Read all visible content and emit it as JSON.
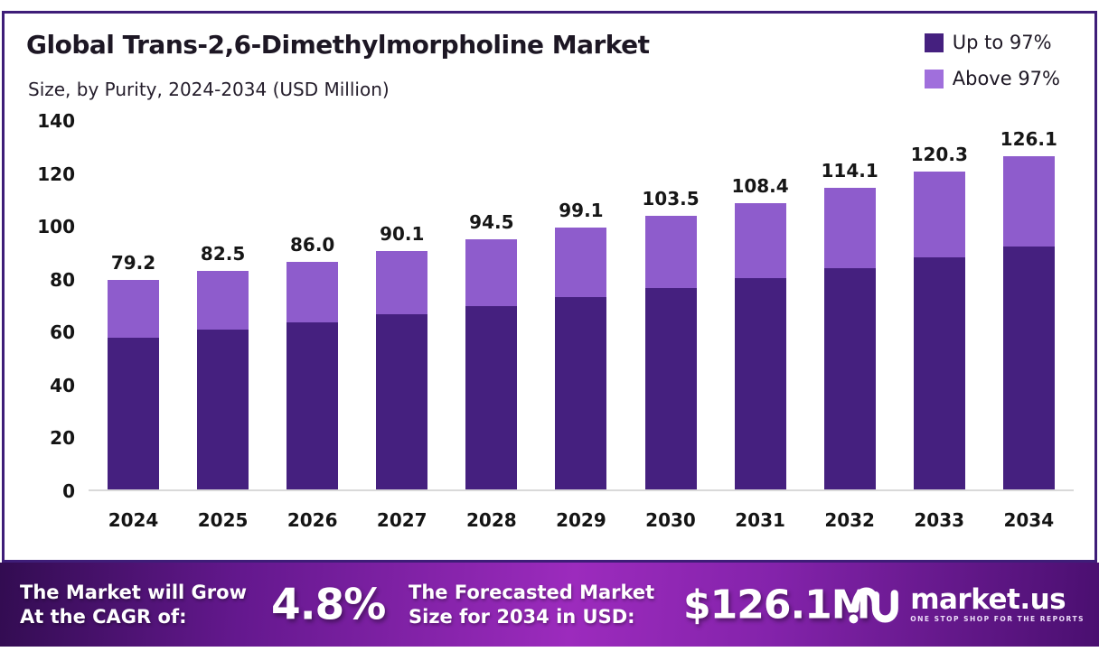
{
  "frame": {
    "border_color": "#3E1D78"
  },
  "header": {
    "title": "Global Trans-2,6-Dimethylmorpholine Market",
    "subtitle": "Size, by Purity, 2024-2034 (USD Million)"
  },
  "legend": [
    {
      "label": "Up to 97%",
      "color": "#45207F"
    },
    {
      "label": "Above 97%",
      "color": "#A06FDC"
    }
  ],
  "chart_data": {
    "type": "bar",
    "stacked": true,
    "title": "Global Trans-2,6-Dimethylmorpholine Market Size, by Purity, 2024-2034 (USD Million)",
    "categories": [
      "2024",
      "2025",
      "2026",
      "2027",
      "2028",
      "2029",
      "2030",
      "2031",
      "2032",
      "2033",
      "2034"
    ],
    "series": [
      {
        "name": "Up to 97%",
        "color": "#45207F",
        "values": [
          57.5,
          60.3,
          63.1,
          66.2,
          69.3,
          72.7,
          76.2,
          79.8,
          83.7,
          87.7,
          91.9
        ]
      },
      {
        "name": "Above 97%",
        "color": "#8E5CCC",
        "values": [
          21.7,
          22.2,
          22.9,
          23.9,
          25.2,
          26.4,
          27.3,
          28.6,
          30.4,
          32.6,
          34.2
        ]
      }
    ],
    "totals": [
      79.2,
      82.5,
      86.0,
      90.1,
      94.5,
      99.1,
      103.5,
      108.4,
      114.1,
      120.3,
      126.1
    ],
    "total_labels": [
      "79.2",
      "82.5",
      "86.0",
      "90.1",
      "94.5",
      "99.1",
      "103.5",
      "108.4",
      "114.1",
      "120.3",
      "126.1"
    ],
    "ylabel": "",
    "xlabel": "",
    "ylim": [
      0,
      140
    ],
    "yticks": [
      0,
      20,
      40,
      60,
      80,
      100,
      120,
      140
    ],
    "grid": false,
    "legend_position": "top-right",
    "axis_line_color": "#D9D9D9"
  },
  "footer": {
    "cagr_label_line1": "The Market will Grow",
    "cagr_label_line2": "At the CAGR of:",
    "cagr_value": "4.8%",
    "forecast_label_line1": "The Forecasted Market",
    "forecast_label_line2": "Size for 2034 in USD:",
    "forecast_value": "$126.1M",
    "brand": {
      "name": "market.us",
      "tagline": "ONE STOP SHOP FOR THE REPORTS"
    }
  }
}
